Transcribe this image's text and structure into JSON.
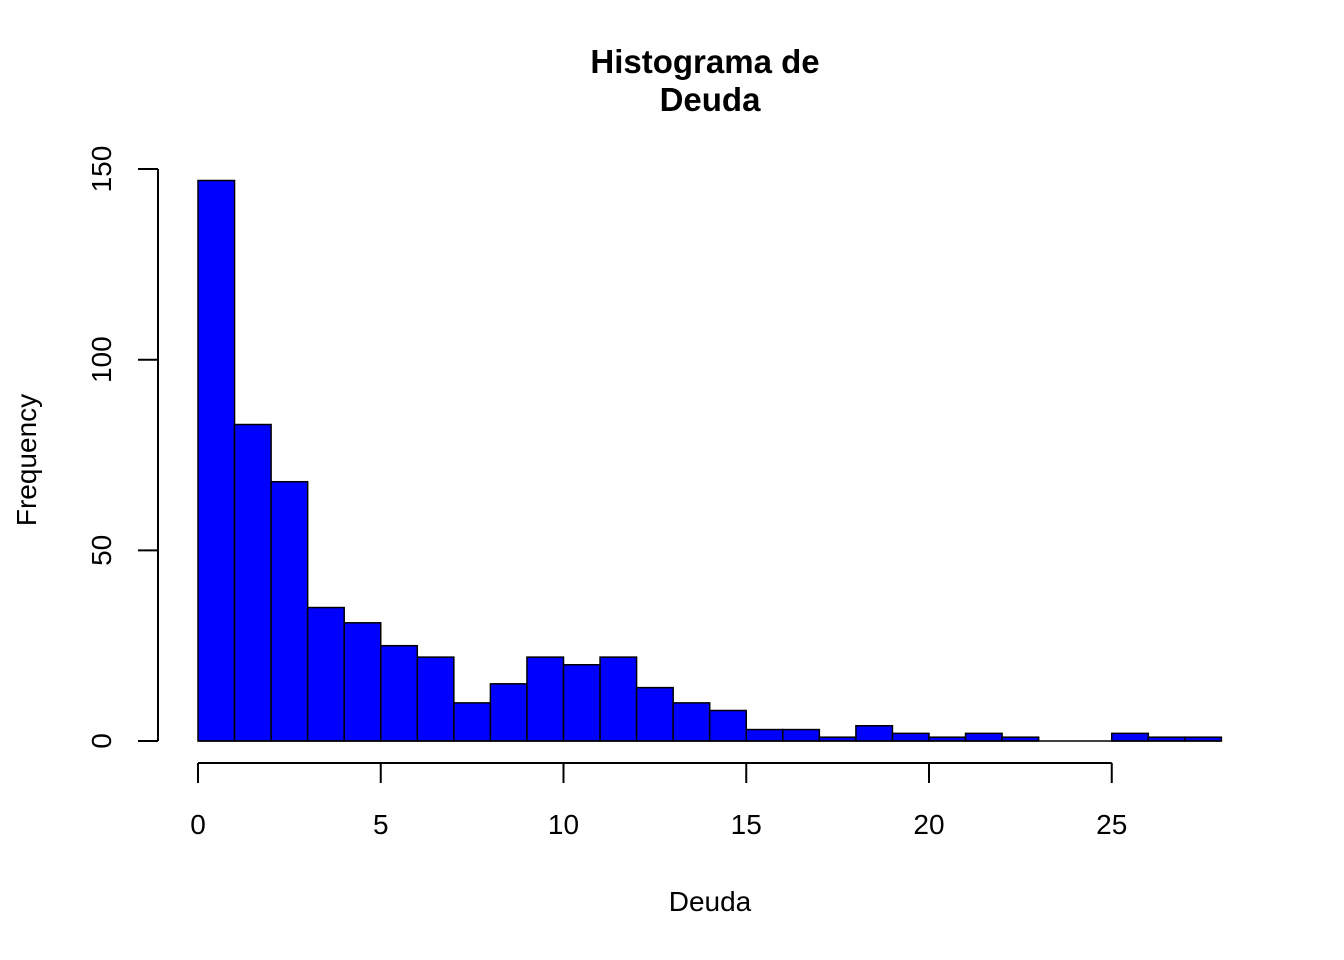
{
  "chart_data": {
    "type": "bar",
    "title": [
      "Histograma de",
      "Deuda"
    ],
    "xlabel": "Deuda",
    "ylabel": "Frequency",
    "bin_width": 1,
    "bins_start": [
      0,
      1,
      2,
      3,
      4,
      5,
      6,
      7,
      8,
      9,
      10,
      11,
      12,
      13,
      14,
      15,
      16,
      17,
      18,
      19,
      20,
      21,
      22,
      23,
      24,
      25,
      26,
      27
    ],
    "values": [
      147,
      83,
      68,
      35,
      31,
      25,
      22,
      10,
      15,
      22,
      20,
      22,
      14,
      10,
      8,
      3,
      3,
      1,
      4,
      2,
      1,
      2,
      1,
      0,
      0,
      2,
      1,
      1
    ],
    "xlim": [
      0,
      28
    ],
    "ylim": [
      0,
      150
    ],
    "x_ticks": [
      0,
      5,
      10,
      15,
      20,
      25
    ],
    "y_ticks": [
      0,
      50,
      100,
      150
    ],
    "x_tick_labels": [
      "0",
      "5",
      "10",
      "15",
      "20",
      "25"
    ],
    "y_tick_labels": [
      "0",
      "50",
      "100",
      "150"
    ],
    "bar_color": "#0000ff",
    "bar_border": "#000000",
    "grid": false,
    "legend": "none"
  }
}
